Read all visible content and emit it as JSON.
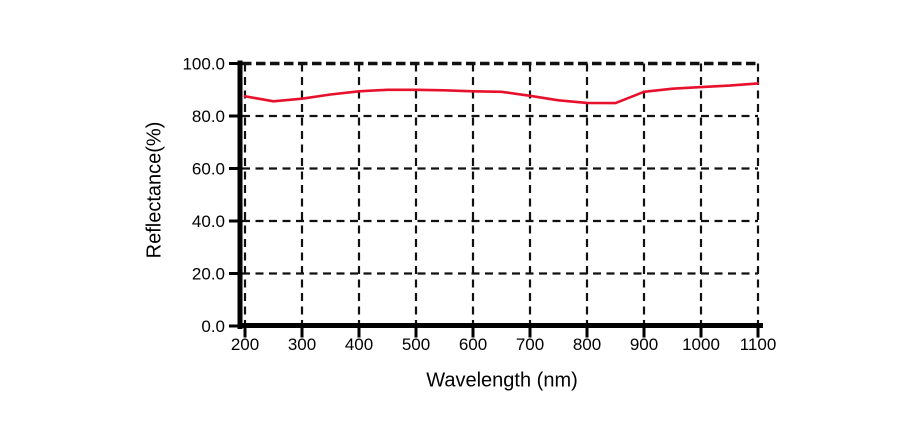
{
  "chart_data": {
    "type": "line",
    "title": "",
    "xlabel": "Wavelength (nm)",
    "ylabel": "Reflectance(%)",
    "xlim": [
      200,
      1100
    ],
    "ylim": [
      0,
      100
    ],
    "x_ticks": [
      200,
      300,
      400,
      500,
      600,
      700,
      800,
      900,
      1000,
      1100
    ],
    "y_ticks": [
      0,
      20,
      40,
      60,
      80,
      100
    ],
    "y_tick_labels": [
      "0.0",
      "20.0",
      "40.0",
      "60.0",
      "80.0",
      "100.0"
    ],
    "grid": "dashed-both-directions",
    "legend": "none",
    "colors": {
      "line": "#e8112d",
      "axis": "#000000",
      "grid": "#111111",
      "text": "#000000",
      "background": "#ffffff"
    },
    "series": [
      {
        "name": "Reflectance",
        "color": "#e8112d",
        "points": [
          [
            200,
            87.5
          ],
          [
            250,
            85.6
          ],
          [
            300,
            86.6
          ],
          [
            350,
            88.2
          ],
          [
            400,
            89.4
          ],
          [
            450,
            90.0
          ],
          [
            500,
            90.0
          ],
          [
            550,
            89.8
          ],
          [
            600,
            89.4
          ],
          [
            650,
            89.2
          ],
          [
            700,
            87.7
          ],
          [
            750,
            86.0
          ],
          [
            800,
            85.0
          ],
          [
            850,
            84.9
          ],
          [
            900,
            89.2
          ],
          [
            950,
            90.4
          ],
          [
            1000,
            91.0
          ],
          [
            1050,
            91.6
          ],
          [
            1100,
            92.4
          ]
        ]
      }
    ]
  }
}
